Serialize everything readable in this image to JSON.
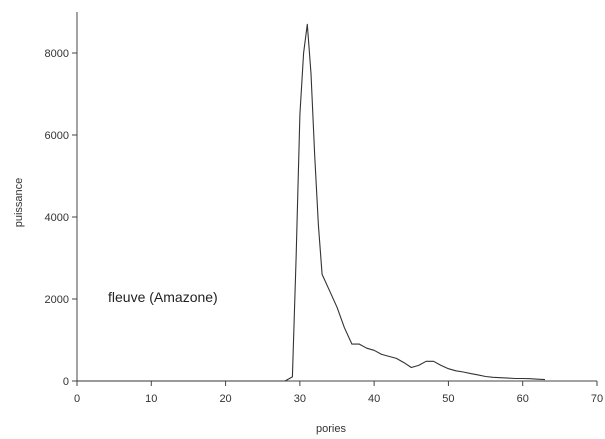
{
  "chart_data": {
    "type": "line",
    "xlabel": "pories",
    "ylabel": "puissance",
    "xlim": [
      0,
      70
    ],
    "ylim": [
      0,
      9000
    ],
    "xticks": [
      0,
      10,
      20,
      30,
      40,
      50,
      60,
      70
    ],
    "yticks": [
      0,
      2000,
      4000,
      6000,
      8000
    ],
    "grid": false,
    "annotation": "fleuve (Amazone)",
    "series": [
      {
        "color": "#333333",
        "x": [
          0,
          5,
          10,
          15,
          20,
          25,
          28,
          29,
          29.5,
          30,
          30.5,
          31,
          31.5,
          32,
          32.5,
          33,
          34,
          35,
          36,
          37,
          38,
          39,
          40,
          41,
          42,
          43,
          44,
          45,
          46,
          47,
          48,
          49,
          50,
          51,
          52,
          53,
          54,
          55,
          56,
          57,
          58,
          59,
          60,
          61,
          62,
          63
        ],
        "y": [
          0,
          0,
          0,
          0,
          0,
          0,
          0,
          100,
          3000,
          6500,
          8000,
          8700,
          7500,
          5500,
          3800,
          2600,
          2200,
          1800,
          1300,
          900,
          900,
          800,
          750,
          650,
          600,
          550,
          450,
          330,
          380,
          480,
          480,
          380,
          300,
          250,
          220,
          180,
          150,
          110,
          90,
          80,
          70,
          60,
          60,
          55,
          45,
          35
        ]
      }
    ]
  }
}
